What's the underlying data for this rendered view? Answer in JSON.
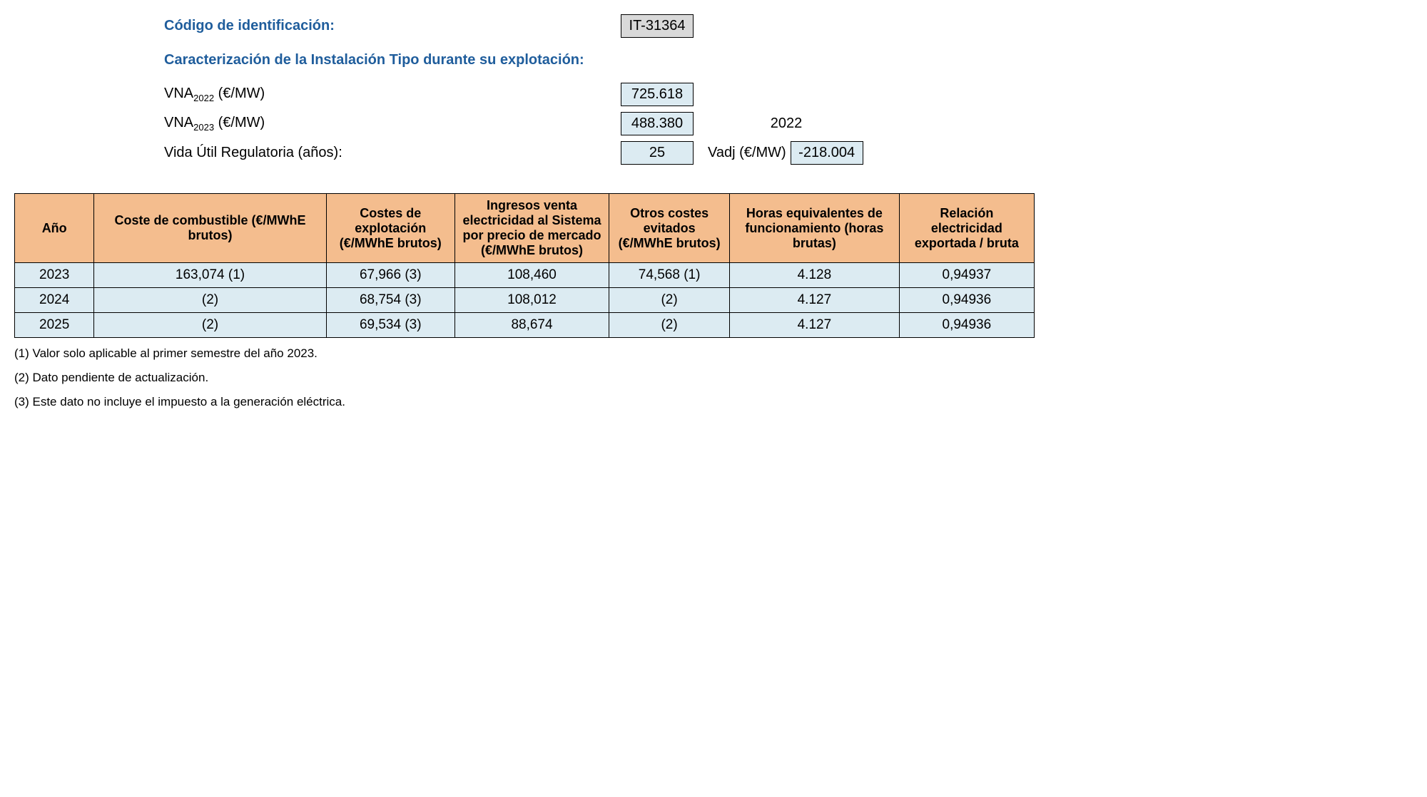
{
  "header": {
    "id_label": "Código de identificación:",
    "id_value": "IT-31364",
    "char_label": "Caracterización de la Instalación Tipo durante su explotación:",
    "params": [
      {
        "label_html": "VNA<sub>2022</sub> (€/MW)",
        "value": "725.618"
      },
      {
        "label_html": "VNA<sub>2023</sub> (€/MW)",
        "value": "488.380"
      },
      {
        "label_html": "Vida Útil Regulatoria (años):",
        "value": "25"
      }
    ],
    "side_year": "2022",
    "vadj_label": "Vadj (€/MW)",
    "vadj_value": "-218.004"
  },
  "table": {
    "columns": [
      "Año",
      "Coste de combustible (€/MWhE brutos)",
      "Costes de explotación (€/MWhE brutos)",
      "Ingresos venta electricidad al Sistema por precio de mercado (€/MWhE brutos)",
      "Otros costes evitados (€/MWhE brutos)",
      "Horas equivalentes de funcionamiento (horas brutas)",
      "Relación electricidad exportada / bruta"
    ],
    "rows": [
      [
        "2023",
        "163,074 (1)",
        "67,966 (3)",
        "108,460",
        "74,568 (1)",
        "4.128",
        "0,94937"
      ],
      [
        "2024",
        "(2)",
        "68,754 (3)",
        "108,012",
        "(2)",
        "4.127",
        "0,94936"
      ],
      [
        "2025",
        "(2)",
        "69,534 (3)",
        "88,674",
        "(2)",
        "4.127",
        "0,94936"
      ]
    ]
  },
  "footnotes": [
    "(1) Valor solo aplicable al primer semestre del año 2023.",
    "(2) Dato pendiente de actualización.",
    "(3) Este dato no incluye el impuesto a la generación eléctrica."
  ],
  "colors": {
    "header_text": "#1f5d9c",
    "box_gray": "#d9d9d9",
    "box_blue": "#dcebf2",
    "th_bg": "#f4bd8e",
    "td_bg": "#dcebf2",
    "border": "#000000",
    "background": "#ffffff"
  }
}
